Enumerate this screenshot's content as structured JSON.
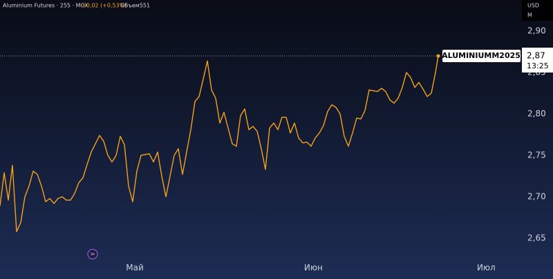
{
  "chart_data": {
    "type": "line",
    "title": "Aluminium Futures · 255 · MCX",
    "change_label": "+0,02 (+0,53%)",
    "volume_label": "Объем551",
    "currency": "USD",
    "timeframe": "M",
    "color": "#f7a21b",
    "x": [
      6.6,
      7.32,
      8.04,
      8.76,
      9.48,
      10.2,
      10.92,
      11.64,
      12.36,
      13.08,
      13.8,
      14.52,
      15.24,
      15.96,
      16.68,
      17.4,
      18.12,
      18.84,
      19.56,
      20.28,
      21,
      21.72,
      22.44,
      23.16,
      23.88,
      24.6,
      25.32,
      26.04,
      26.76,
      27.48,
      28.2,
      28.92,
      29.64,
      30.36,
      31.08,
      31.8,
      32.52,
      33.24,
      33.96,
      34.68,
      35.4,
      36.12,
      36.84,
      37.56,
      38.28,
      39,
      39.72,
      40.44,
      41.16,
      41.88,
      42.6,
      43.32,
      44.04,
      44.76,
      45.48,
      46.2,
      46.92,
      47.64,
      48.36,
      49.08,
      49.8,
      50.52,
      51.24,
      51.96,
      52.68,
      53.4,
      54.12,
      54.84,
      55.56,
      56.28,
      57,
      57.72,
      58.44,
      59.16,
      59.88,
      60.6,
      61.32,
      62.04,
      62.76,
      63.48,
      64.2,
      64.92,
      65.64,
      66.36,
      67.08,
      67.8,
      68.52,
      69.24,
      69.96,
      70.68,
      71.4,
      72.12,
      72.84,
      73.56,
      74.28,
      75,
      75.72,
      76.44,
      77.16,
      77.88,
      78.6,
      79.32,
      80.04,
      80.76,
      81.48,
      82.2,
      82.68
    ],
    "series": [
      {
        "name": "ALUMINIUMM2025",
        "color": "#f7a21b",
        "values": [
          2.689,
          2.729,
          2.696,
          2.738,
          2.658,
          2.669,
          2.7,
          2.713,
          2.731,
          2.727,
          2.713,
          2.694,
          2.698,
          2.692,
          2.698,
          2.7,
          2.696,
          2.696,
          2.704,
          2.717,
          2.723,
          2.739,
          2.754,
          2.764,
          2.774,
          2.767,
          2.75,
          2.742,
          2.75,
          2.773,
          2.763,
          2.713,
          2.694,
          2.731,
          2.75,
          2.751,
          2.752,
          2.742,
          2.754,
          2.725,
          2.7,
          2.725,
          2.75,
          2.758,
          2.727,
          2.754,
          2.781,
          2.815,
          2.821,
          2.842,
          2.864,
          2.829,
          2.819,
          2.789,
          2.802,
          2.783,
          2.764,
          2.761,
          2.798,
          2.806,
          2.781,
          2.785,
          2.779,
          2.758,
          2.733,
          2.783,
          2.789,
          2.781,
          2.796,
          2.796,
          2.777,
          2.789,
          2.771,
          2.765,
          2.766,
          2.761,
          2.771,
          2.777,
          2.786,
          2.803,
          2.811,
          2.808,
          2.8,
          2.773,
          2.761,
          2.777,
          2.795,
          2.794,
          2.804,
          2.829,
          2.828,
          2.827,
          2.831,
          2.827,
          2.817,
          2.813,
          2.819,
          2.832,
          2.85,
          2.844,
          2.832,
          2.838,
          2.83,
          2.821,
          2.825,
          2.85,
          2.87
        ]
      }
    ],
    "last_price": {
      "value": 2.87,
      "label": "2,87",
      "time": "13:25"
    },
    "xlim": [
      6.6,
      97.2
    ],
    "xticks": [
      {
        "value": 30,
        "label": "Май"
      },
      {
        "value": 61,
        "label": "Июн"
      },
      {
        "value": 91,
        "label": "Июл"
      }
    ],
    "ylim": [
      2.6008,
      2.9375
    ],
    "yticks": [
      {
        "value": 2.65,
        "label": "2,65"
      },
      {
        "value": 2.7,
        "label": "2,70"
      },
      {
        "value": 2.75,
        "label": "2,75"
      },
      {
        "value": 2.8,
        "label": "2,80"
      },
      {
        "value": 2.85,
        "label": "2,85"
      },
      {
        "value": 2.9,
        "label": "2,90"
      }
    ]
  }
}
